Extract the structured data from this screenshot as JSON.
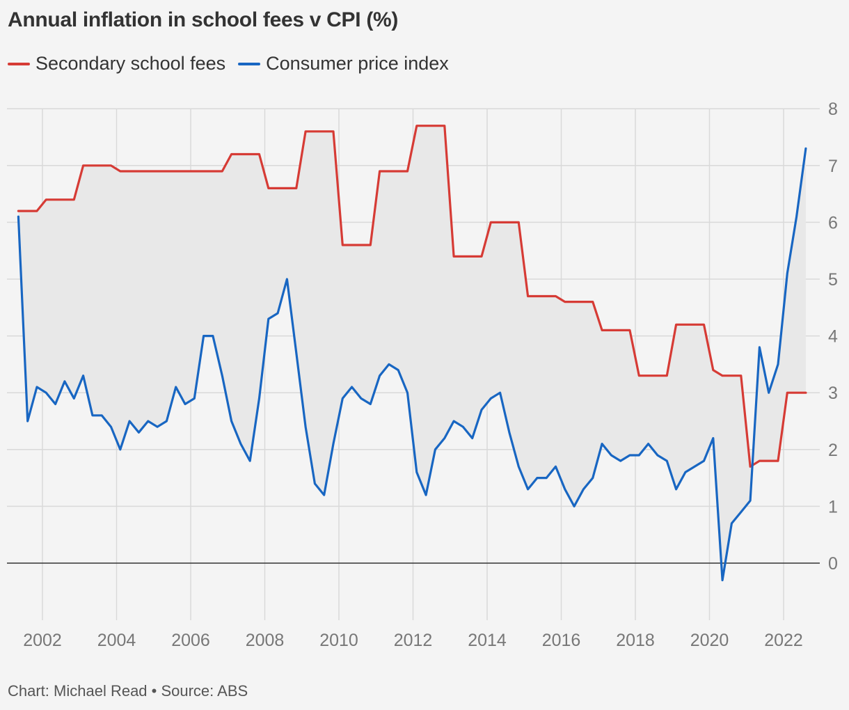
{
  "header": {
    "title": "Annual inflation in school fees v CPI (%)"
  },
  "footer": {
    "credit": "Chart: Michael Read • Source: ABS"
  },
  "chart_data": {
    "type": "line",
    "title": "Annual inflation in school fees v CPI (%)",
    "xlabel": "",
    "ylabel": "",
    "xlim": [
      2001,
      2023.1
    ],
    "ylim": [
      -1,
      8
    ],
    "x_ticks": [
      2002,
      2004,
      2006,
      2008,
      2010,
      2012,
      2014,
      2016,
      2018,
      2020,
      2022
    ],
    "y_ticks": [
      0,
      1,
      2,
      3,
      4,
      5,
      6,
      7,
      8
    ],
    "grid": true,
    "legend_position": "top-left",
    "fill_between_series": true,
    "colors": {
      "fill": "#e8e8e8",
      "grid": "#d9d9d9",
      "zero_line": "#333333"
    },
    "x": [
      2001.35,
      2001.6,
      2001.85,
      2002.1,
      2002.35,
      2002.6,
      2002.85,
      2003.1,
      2003.35,
      2003.6,
      2003.85,
      2004.1,
      2004.35,
      2004.6,
      2004.85,
      2005.1,
      2005.35,
      2005.6,
      2005.85,
      2006.1,
      2006.35,
      2006.6,
      2006.85,
      2007.1,
      2007.35,
      2007.6,
      2007.85,
      2008.1,
      2008.35,
      2008.6,
      2008.85,
      2009.1,
      2009.35,
      2009.6,
      2009.85,
      2010.1,
      2010.35,
      2010.6,
      2010.85,
      2011.1,
      2011.35,
      2011.6,
      2011.85,
      2012.1,
      2012.35,
      2012.6,
      2012.85,
      2013.1,
      2013.35,
      2013.6,
      2013.85,
      2014.1,
      2014.35,
      2014.6,
      2014.85,
      2015.1,
      2015.35,
      2015.6,
      2015.85,
      2016.1,
      2016.35,
      2016.6,
      2016.85,
      2017.1,
      2017.35,
      2017.6,
      2017.85,
      2018.1,
      2018.35,
      2018.6,
      2018.85,
      2019.1,
      2019.35,
      2019.6,
      2019.85,
      2020.1,
      2020.35,
      2020.6,
      2020.85,
      2021.1,
      2021.35,
      2021.6,
      2021.85,
      2022.1,
      2022.35,
      2022.6
    ],
    "series": [
      {
        "name": "Secondary school fees",
        "color": "#d63b35",
        "values": [
          6.2,
          6.2,
          6.2,
          6.4,
          6.4,
          6.4,
          6.4,
          7.0,
          7.0,
          7.0,
          7.0,
          6.9,
          6.9,
          6.9,
          6.9,
          6.9,
          6.9,
          6.9,
          6.9,
          6.9,
          6.9,
          6.9,
          6.9,
          7.2,
          7.2,
          7.2,
          7.2,
          6.6,
          6.6,
          6.6,
          6.6,
          7.6,
          7.6,
          7.6,
          7.6,
          5.6,
          5.6,
          5.6,
          5.6,
          6.9,
          6.9,
          6.9,
          6.9,
          7.7,
          7.7,
          7.7,
          7.7,
          5.4,
          5.4,
          5.4,
          5.4,
          6.0,
          6.0,
          6.0,
          6.0,
          4.7,
          4.7,
          4.7,
          4.7,
          4.6,
          4.6,
          4.6,
          4.6,
          4.1,
          4.1,
          4.1,
          4.1,
          3.3,
          3.3,
          3.3,
          3.3,
          4.2,
          4.2,
          4.2,
          4.2,
          3.4,
          3.3,
          3.3,
          3.3,
          1.7,
          1.8,
          1.8,
          1.8,
          3.0,
          3.0,
          3.0
        ]
      },
      {
        "name": "Consumer price index",
        "color": "#1866c2",
        "values": [
          6.1,
          2.5,
          3.1,
          3.0,
          2.8,
          3.2,
          2.9,
          3.3,
          2.6,
          2.6,
          2.4,
          2.0,
          2.5,
          2.3,
          2.5,
          2.4,
          2.5,
          3.1,
          2.8,
          2.9,
          4.0,
          4.0,
          3.3,
          2.5,
          2.1,
          1.8,
          2.9,
          4.3,
          4.4,
          5.0,
          3.7,
          2.4,
          1.4,
          1.2,
          2.1,
          2.9,
          3.1,
          2.9,
          2.8,
          3.3,
          3.5,
          3.4,
          3.0,
          1.6,
          1.2,
          2.0,
          2.2,
          2.5,
          2.4,
          2.2,
          2.7,
          2.9,
          3.0,
          2.3,
          1.7,
          1.3,
          1.5,
          1.5,
          1.7,
          1.3,
          1.0,
          1.3,
          1.5,
          2.1,
          1.9,
          1.8,
          1.9,
          1.9,
          2.1,
          1.9,
          1.8,
          1.3,
          1.6,
          1.7,
          1.8,
          2.2,
          -0.3,
          0.7,
          0.9,
          1.1,
          3.8,
          3.0,
          3.5,
          5.1,
          6.1,
          7.3
        ]
      }
    ]
  }
}
